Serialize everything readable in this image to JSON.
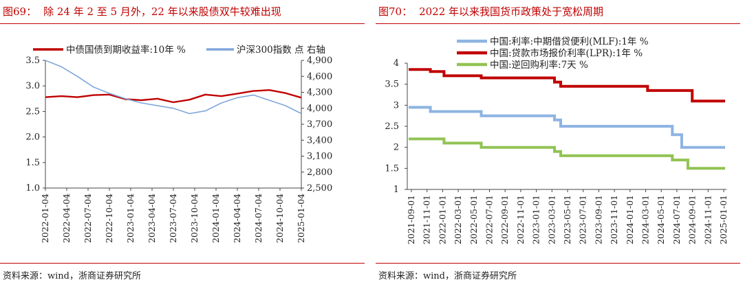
{
  "chart_data": [
    {
      "type": "line",
      "figure_label": "图69：",
      "title": "除 24 年 2 至 5 月外，22 年以来股债双牛较难出现",
      "source": "资料来源：wind，浙商证券研究所",
      "x_tick_labels": [
        "2022-01-04",
        "2022-04-04",
        "2022-07-04",
        "2022-10-04",
        "2023-01-04",
        "2023-04-04",
        "2023-07-04",
        "2023-10-04",
        "2024-01-04",
        "2024-04-04",
        "2024-07-04",
        "2024-10-04",
        "2025-01-04"
      ],
      "ylim_left": [
        1.0,
        3.5
      ],
      "yticks_left": [
        "1.0",
        "1.5",
        "2.0",
        "2.5",
        "3.0",
        "3.5"
      ],
      "ylim_right": [
        2500,
        4900
      ],
      "yticks_right": [
        "2,500",
        "2,800",
        "3,100",
        "3,400",
        "3,700",
        "4,000",
        "4,300",
        "4,600",
        "4,900"
      ],
      "legend_position": "top",
      "colors": {
        "bond": "#c00000",
        "index": "#7fa6dc"
      },
      "series": [
        {
          "name": "中债国债到期收益率:10年 %",
          "axis": "left",
          "x": [
            0,
            3,
            6,
            9,
            12,
            15,
            18,
            21,
            24,
            27,
            30,
            33,
            36,
            39,
            42,
            45,
            48
          ],
          "values": [
            2.78,
            2.8,
            2.78,
            2.82,
            2.83,
            2.74,
            2.72,
            2.75,
            2.68,
            2.73,
            2.83,
            2.8,
            2.85,
            2.9,
            2.92,
            2.86,
            2.77
          ]
        },
        {
          "name": "沪深300指数 点 右轴",
          "axis": "right",
          "x": [
            0,
            3,
            6,
            9,
            12,
            15,
            18,
            21,
            24,
            27,
            30,
            33,
            36,
            39,
            42,
            45,
            48
          ],
          "values": [
            4900,
            4780,
            4600,
            4400,
            4280,
            4180,
            4100,
            4050,
            4000,
            3900,
            3950,
            4100,
            4200,
            4250,
            4150,
            4050,
            3900
          ]
        }
      ]
    },
    {
      "type": "line",
      "figure_label": "图70：",
      "title": "2022 年以来我国货币政策处于宽松周期",
      "source": "资料来源：wind，浙商证券研究所",
      "x_tick_labels": [
        "2021-09-01",
        "2021-11-01",
        "2022-01-01",
        "2022-03-01",
        "2022-05-01",
        "2022-07-01",
        "2022-09-01",
        "2022-11-01",
        "2023-01-01",
        "2023-03-01",
        "2023-05-01",
        "2023-07-01",
        "2023-09-01",
        "2023-11-01",
        "2024-01-01",
        "2024-03-01",
        "2024-05-01",
        "2024-07-01",
        "2024-09-01",
        "2024-11-01",
        "2025-01-01"
      ],
      "ylim": [
        1,
        4
      ],
      "yticks": [
        "1",
        "1.5",
        "2",
        "2.5",
        "3",
        "3.5",
        "4"
      ],
      "legend_position": "top",
      "colors": {
        "mlf": "#8db4e2",
        "lpr": "#c00000",
        "rr": "#92c353"
      },
      "series": [
        {
          "name": "中国:利率:中期借贷便利(MLF):1年 %",
          "x": [
            0,
            3.5,
            3.5,
            11.7,
            11.7,
            23.5,
            23.5,
            24.5,
            24.5,
            42.5,
            42.5,
            44,
            44,
            47,
            47,
            51
          ],
          "values": [
            2.95,
            2.95,
            2.85,
            2.85,
            2.75,
            2.75,
            2.65,
            2.65,
            2.5,
            2.5,
            2.3,
            2.3,
            2.0,
            2.0,
            2.0,
            2.0
          ]
        },
        {
          "name": "中国:贷款市场报价利率(LPR):1年 %",
          "x": [
            0,
            3.5,
            3.5,
            5.7,
            5.7,
            11.7,
            11.7,
            23.5,
            23.5,
            24.5,
            24.5,
            38.5,
            38.5,
            45.7,
            45.7,
            51
          ],
          "values": [
            3.85,
            3.85,
            3.8,
            3.8,
            3.7,
            3.7,
            3.65,
            3.65,
            3.55,
            3.55,
            3.45,
            3.45,
            3.35,
            3.35,
            3.1,
            3.1
          ]
        },
        {
          "name": "中国:逆回购利率:7天 %",
          "x": [
            0,
            5.7,
            5.7,
            11.7,
            11.7,
            23.5,
            23.5,
            24.5,
            24.5,
            42.5,
            42.5,
            45,
            45,
            51
          ],
          "values": [
            2.2,
            2.2,
            2.1,
            2.1,
            2.0,
            2.0,
            1.9,
            1.9,
            1.8,
            1.8,
            1.7,
            1.7,
            1.5,
            1.5
          ]
        }
      ]
    }
  ]
}
